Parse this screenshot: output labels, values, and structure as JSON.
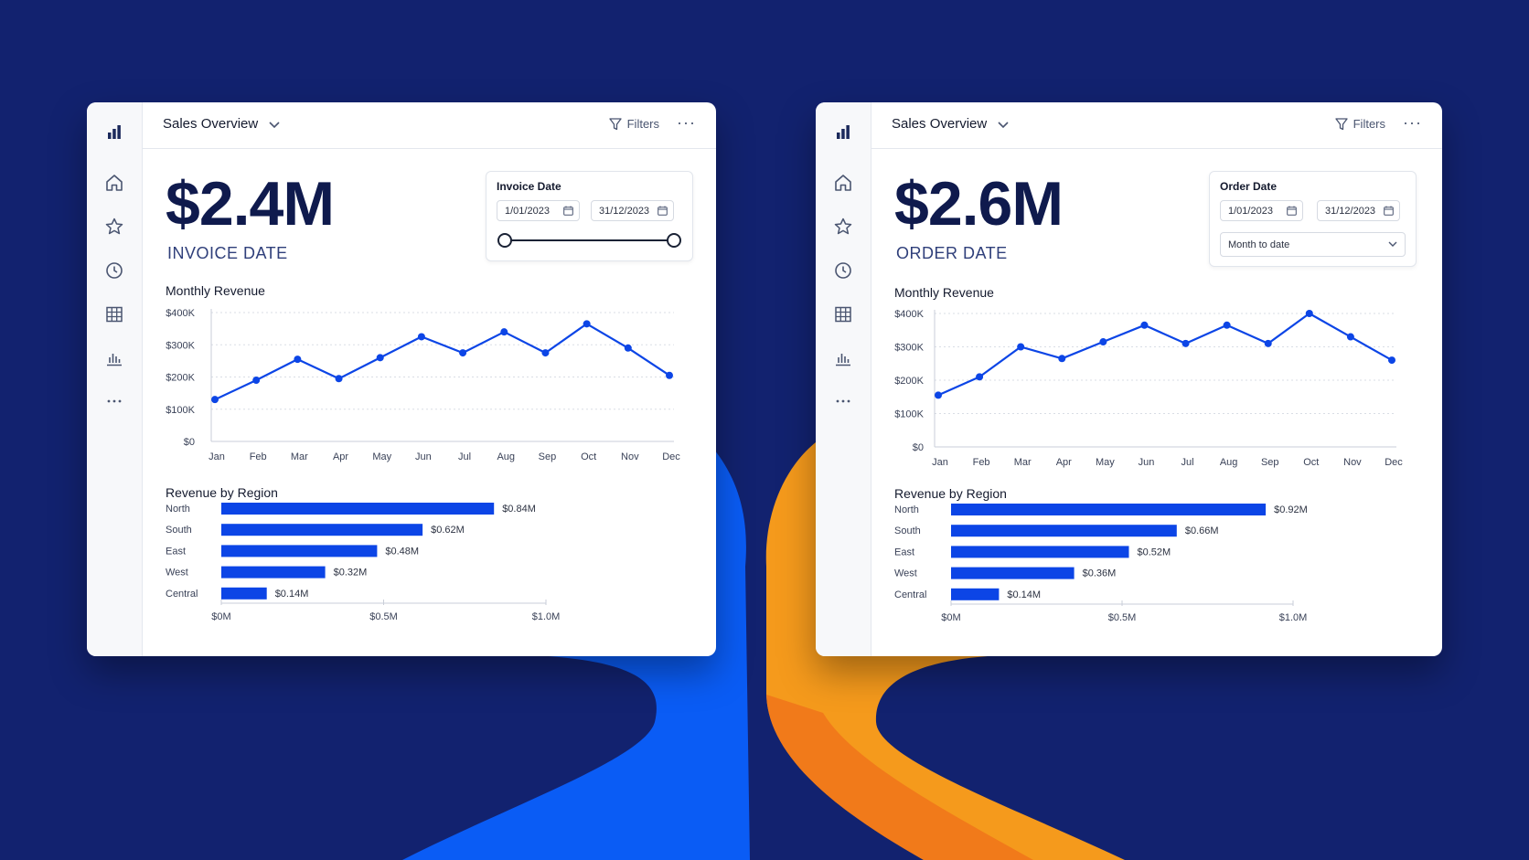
{
  "colors": {
    "background": "#12226f",
    "accent": "#0c45e6",
    "blue_wave": "#0a5cf5",
    "orange_wave": "#f2881a"
  },
  "dashboards": [
    {
      "title": "Sales Overview",
      "filters_label": "Filters",
      "more_label": "···",
      "kpi_value": "$2.4M",
      "kpi_label": "INVOICE DATE",
      "date_filter": {
        "title": "Invoice Date",
        "start": "1/01/2023",
        "end": "31/12/2023",
        "control": "range-slider",
        "slider_range": [
          0,
          1
        ]
      },
      "monthly_title": "Monthly Revenue",
      "region_title": "Revenue by Region",
      "chart_data": [
        {
          "type": "line",
          "title": "Monthly Revenue",
          "categories": [
            "Jan",
            "Feb",
            "Mar",
            "Apr",
            "May",
            "Jun",
            "Jul",
            "Aug",
            "Sep",
            "Oct",
            "Nov",
            "Dec"
          ],
          "values": [
            130,
            190,
            255,
            195,
            260,
            325,
            275,
            340,
            275,
            365,
            290,
            205
          ],
          "unit": "thousands USD",
          "ylim": [
            0,
            400
          ],
          "y_ticks": [
            "$0",
            "$100K",
            "$200K",
            "$300K",
            "$400K"
          ],
          "grid": true
        },
        {
          "type": "bar",
          "orientation": "horizontal",
          "title": "Revenue by Region",
          "categories": [
            "North",
            "South",
            "East",
            "West",
            "Central"
          ],
          "values": [
            0.84,
            0.62,
            0.48,
            0.32,
            0.14
          ],
          "value_labels": [
            "$0.84M",
            "$0.62M",
            "$0.48M",
            "$0.32M",
            "$0.14M"
          ],
          "unit": "millions USD",
          "xlim": [
            0,
            1
          ],
          "x_ticks": [
            "$0M",
            "$0.5M",
            "$1.0M"
          ]
        }
      ]
    },
    {
      "title": "Sales Overview",
      "filters_label": "Filters",
      "more_label": "···",
      "kpi_value": "$2.6M",
      "kpi_label": "ORDER DATE",
      "date_filter": {
        "title": "Order Date",
        "start": "1/01/2023",
        "end": "31/12/2023",
        "control": "select",
        "select_value": "Month to date"
      },
      "monthly_title": "Monthly Revenue",
      "region_title": "Revenue by Region",
      "chart_data": [
        {
          "type": "line",
          "title": "Monthly Revenue",
          "categories": [
            "Jan",
            "Feb",
            "Mar",
            "Apr",
            "May",
            "Jun",
            "Jul",
            "Aug",
            "Sep",
            "Oct",
            "Nov",
            "Dec"
          ],
          "values": [
            155,
            210,
            300,
            265,
            315,
            365,
            310,
            365,
            310,
            400,
            330,
            260
          ],
          "unit": "thousands USD",
          "ylim": [
            0,
            400
          ],
          "y_ticks": [
            "$0",
            "$100K",
            "$200K",
            "$300K",
            "$400K"
          ],
          "grid": true
        },
        {
          "type": "bar",
          "orientation": "horizontal",
          "title": "Revenue by Region",
          "categories": [
            "North",
            "South",
            "East",
            "West",
            "Central"
          ],
          "values": [
            0.92,
            0.66,
            0.52,
            0.36,
            0.14
          ],
          "value_labels": [
            "$0.92M",
            "$0.66M",
            "$0.52M",
            "$0.36M",
            "$0.14M"
          ],
          "unit": "millions USD",
          "xlim": [
            0,
            1
          ],
          "x_ticks": [
            "$0M",
            "$0.5M",
            "$1.0M"
          ]
        }
      ]
    }
  ],
  "rail_icons": [
    "bar-chart-logo-icon",
    "home-icon",
    "star-icon",
    "clock-icon",
    "table-grid-icon",
    "chart-icon",
    "more-icon"
  ]
}
